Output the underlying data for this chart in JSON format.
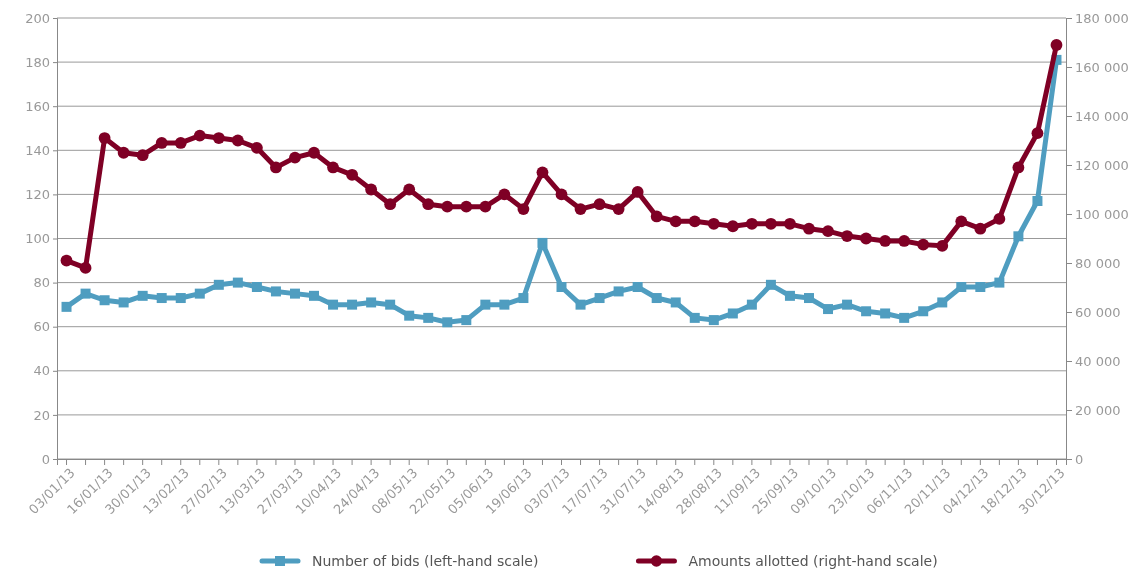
{
  "chart_data": {
    "type": "line",
    "categories": [
      "03/01/13",
      null,
      "16/01/13",
      null,
      "30/01/13",
      null,
      "13/02/13",
      null,
      "27/02/13",
      null,
      "13/03/13",
      null,
      "27/03/13",
      null,
      "10/04/13",
      null,
      "24/04/13",
      null,
      "08/05/13",
      null,
      "22/05/13",
      null,
      "05/06/13",
      null,
      "19/06/13",
      null,
      "03/07/13",
      null,
      "17/07/13",
      null,
      "31/07/13",
      null,
      "14/08/13",
      null,
      "28/08/13",
      null,
      "11/09/13",
      null,
      "25/09/13",
      null,
      "09/10/13",
      null,
      "23/10/13",
      null,
      "06/11/13",
      null,
      "20/11/13",
      null,
      "04/12/13",
      null,
      "18/12/13",
      null,
      "30/12/13"
    ],
    "series": [
      {
        "name": "Number of bids (left-hand scale)",
        "color": "#4f9dc0",
        "marker": "square",
        "values": [
          69,
          75,
          72,
          71,
          74,
          73,
          73,
          75,
          79,
          80,
          78,
          76,
          75,
          74,
          70,
          70,
          71,
          70,
          65,
          64,
          62,
          63,
          70,
          70,
          73,
          98,
          78,
          70,
          73,
          76,
          78,
          73,
          71,
          64,
          63,
          66,
          70,
          79,
          74,
          73,
          68,
          70,
          67,
          66,
          64,
          67,
          71,
          78,
          78,
          80,
          101,
          117,
          181
        ]
      },
      {
        "name": "Amounts allotted (right-hand scale)",
        "color": "#7f0025",
        "marker": "circle",
        "axis": "y2",
        "values": [
          81000,
          78000,
          131000,
          125000,
          124000,
          129000,
          129000,
          132000,
          131000,
          130000,
          127000,
          119000,
          123000,
          125000,
          119000,
          116000,
          110000,
          104000,
          110000,
          104000,
          103000,
          103000,
          103000,
          108000,
          102000,
          117000,
          108000,
          102000,
          104000,
          102000,
          109000,
          99000,
          97000,
          97000,
          96000,
          95000,
          96000,
          96000,
          96000,
          94000,
          93000,
          91000,
          90000,
          89000,
          89000,
          87500,
          87000,
          97000,
          94000,
          98000,
          119000,
          133000,
          169000
        ]
      }
    ],
    "ylim": [
      0,
      200
    ],
    "yticks": [
      0,
      20,
      40,
      60,
      80,
      100,
      120,
      140,
      160,
      180,
      200
    ],
    "y2lim": [
      0,
      180000
    ],
    "y2ticks": [
      {
        "value": 0,
        "label": "0"
      },
      {
        "value": 20000,
        "label": "20 000"
      },
      {
        "value": 40000,
        "label": "40 000"
      },
      {
        "value": 60000,
        "label": "60 000"
      },
      {
        "value": 80000,
        "label": "80 000"
      },
      {
        "value": 100000,
        "label": "100 000"
      },
      {
        "value": 120000,
        "label": "120 000"
      },
      {
        "value": 140000,
        "label": "140 000"
      },
      {
        "value": 160000,
        "label": "160 000"
      },
      {
        "value": 180000,
        "label": "180 000"
      }
    ],
    "grid": "y",
    "legend": "bottom",
    "line_style": "solid"
  }
}
